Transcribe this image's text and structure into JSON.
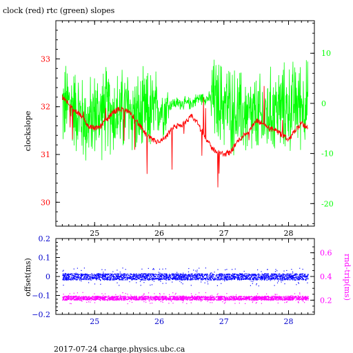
{
  "chart_data": [
    {
      "type": "line",
      "title": "clock (red) rtc (green) slopes",
      "ylabel": "clockslope",
      "xlabel": "",
      "xlim": [
        24.4,
        28.4
      ],
      "ylim": [
        29.5,
        33.8
      ],
      "y2lim": [
        -24.5,
        16.5
      ],
      "x_ticks": [
        25,
        26,
        27,
        28
      ],
      "y_ticks": [
        30,
        31,
        32,
        33
      ],
      "y2_ticks": [
        -20,
        -10,
        0,
        10
      ],
      "grid": false,
      "colors": {
        "axes": "#000000",
        "left_axis": "#ff0000",
        "right_axis": "#00ff00",
        "series1": "#ff0000",
        "series2": "#00ff00"
      },
      "series": [
        {
          "axis": "left",
          "x": [
            24.5,
            24.6,
            24.7,
            24.8,
            24.9,
            25.0,
            25.1,
            25.2,
            25.3,
            25.4,
            25.5,
            25.6,
            25.7,
            25.8,
            25.9,
            26.0,
            26.1,
            26.2,
            26.3,
            26.4,
            26.5,
            26.6,
            26.7,
            26.8,
            26.9,
            27.0,
            27.1,
            27.2,
            27.3,
            27.4,
            27.5,
            27.6,
            27.7,
            27.8,
            27.9,
            28.0,
            28.1,
            28.2,
            28.3
          ],
          "values": [
            32.2,
            32.05,
            31.9,
            31.8,
            31.6,
            31.55,
            31.6,
            31.75,
            31.9,
            31.95,
            31.9,
            31.8,
            31.6,
            31.4,
            31.3,
            31.25,
            31.35,
            31.55,
            31.6,
            31.65,
            31.8,
            31.65,
            31.4,
            31.15,
            31.05,
            31.0,
            31.05,
            31.25,
            31.4,
            31.5,
            31.7,
            31.65,
            31.55,
            31.5,
            31.4,
            31.3,
            31.5,
            31.65,
            31.55
          ]
        },
        {
          "axis": "right",
          "x": [
            24.5,
            24.6,
            24.7,
            24.8,
            24.9,
            25.0,
            25.1,
            25.2,
            25.3,
            25.4,
            25.5,
            25.6,
            25.7,
            25.8,
            25.9,
            26.0,
            26.1,
            26.2,
            26.3,
            26.4,
            26.5,
            26.6,
            26.7,
            26.8,
            26.9,
            27.0,
            27.1,
            27.2,
            27.3,
            27.4,
            27.5,
            27.6,
            27.7,
            27.8,
            27.9,
            28.0,
            28.1,
            28.2,
            28.3
          ],
          "values": [
            -1,
            0,
            -1,
            -3,
            -4,
            -2,
            -2,
            -1,
            -2,
            -2,
            -1,
            -2,
            -3,
            -2,
            -2,
            -1,
            -1,
            0,
            0,
            0,
            0,
            1,
            1,
            1,
            0,
            0,
            -1,
            -2,
            -2,
            -3,
            -3,
            -3,
            -2,
            -1,
            -1,
            -1,
            0,
            0,
            0
          ]
        }
      ]
    },
    {
      "type": "scatter",
      "ylabel": "offset(ms)",
      "y2label": "rnd-trip(ms)",
      "xlim": [
        24.4,
        28.4
      ],
      "ylim": [
        -0.2,
        0.2
      ],
      "y2lim": [
        0.08,
        0.72
      ],
      "x_ticks": [
        25,
        26,
        27,
        28
      ],
      "y_ticks": [
        -0.2,
        -0.1,
        0,
        0.1,
        0.2
      ],
      "y_tick_labels": [
        "−0.2",
        "−0.1",
        "0",
        "0.1",
        "0.2"
      ],
      "y2_ticks": [
        0.2,
        0.4,
        0.6
      ],
      "y2_tick_labels": [
        "0.2",
        "0.4",
        "0.6"
      ],
      "grid": false,
      "colors": {
        "axes": "#000000",
        "left_axis": "#0000cc",
        "right_axis": "#ff00ff",
        "series1": "#0000ff",
        "series2": "#ff00ff"
      },
      "series": [
        {
          "axis": "left",
          "x_range": [
            24.5,
            28.3
          ],
          "center": 0.0,
          "spread": 0.012
        },
        {
          "axis": "right",
          "x_range": [
            24.5,
            28.3
          ],
          "center": 0.22,
          "spread": 0.012
        }
      ]
    }
  ],
  "footer": "2017-07-24 charge.physics.ubc.ca"
}
